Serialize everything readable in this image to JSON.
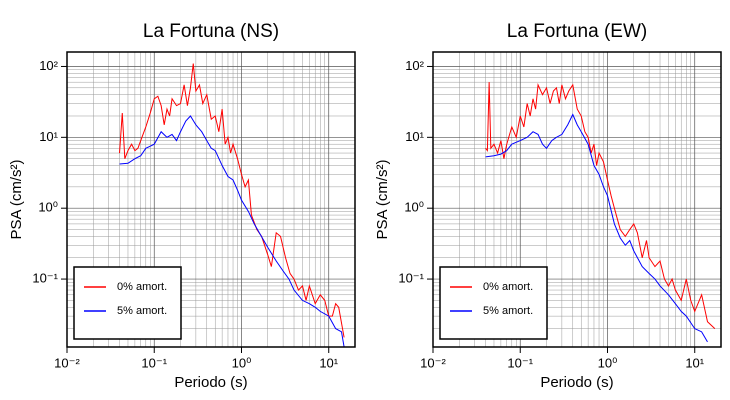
{
  "chart_data": [
    {
      "type": "line",
      "title": "La Fortuna (NS)",
      "xlabel": "Periodo (s)",
      "ylabel": "PSA (cm/s²)",
      "xscale": "log",
      "yscale": "log",
      "grid": true,
      "legend": "lower left",
      "xlim": [
        0.01,
        20
      ],
      "ylim": [
        0.011,
        160
      ],
      "xticks": [
        {
          "value": 0.01,
          "label": "10⁻²"
        },
        {
          "value": 0.1,
          "label": "10⁻¹"
        },
        {
          "value": 1,
          "label": "10⁰"
        },
        {
          "value": 10,
          "label": "10¹"
        }
      ],
      "yticks": [
        {
          "value": 0.1,
          "label": "10⁻¹"
        },
        {
          "value": 1,
          "label": "10⁰"
        },
        {
          "value": 10,
          "label": "10¹"
        },
        {
          "value": 100,
          "label": "10²"
        }
      ],
      "xminor": [
        0.02,
        0.03,
        0.04,
        0.05,
        0.06,
        0.07,
        0.08,
        0.09,
        0.2,
        0.3,
        0.4,
        0.5,
        0.6,
        0.7,
        0.8,
        0.9,
        2,
        3,
        4,
        5,
        6,
        7,
        8,
        9
      ],
      "yminor": [
        0.02,
        0.03,
        0.04,
        0.05,
        0.06,
        0.07,
        0.08,
        0.09,
        0.2,
        0.3,
        0.4,
        0.5,
        0.6,
        0.7,
        0.8,
        0.9,
        2,
        3,
        4,
        5,
        6,
        7,
        8,
        9,
        20,
        30,
        40,
        50,
        60,
        70,
        80,
        90
      ],
      "series": [
        {
          "name": "0% amort.",
          "color": "#ff0000",
          "x": [
            0.04,
            0.043,
            0.046,
            0.05,
            0.055,
            0.06,
            0.065,
            0.07,
            0.08,
            0.09,
            0.1,
            0.11,
            0.12,
            0.13,
            0.14,
            0.15,
            0.16,
            0.18,
            0.2,
            0.22,
            0.24,
            0.26,
            0.28,
            0.3,
            0.33,
            0.36,
            0.4,
            0.45,
            0.5,
            0.55,
            0.6,
            0.65,
            0.7,
            0.75,
            0.8,
            0.9,
            1.0,
            1.1,
            1.2,
            1.3,
            1.5,
            1.7,
            2.0,
            2.2,
            2.5,
            2.8,
            3.2,
            3.6,
            4.0,
            4.5,
            5,
            5.5,
            6,
            7,
            8,
            9,
            10,
            11,
            12,
            13,
            15
          ],
          "values": [
            6,
            22,
            5,
            6.5,
            8,
            6.5,
            7,
            9,
            14,
            22,
            35,
            38,
            28,
            15,
            25,
            20,
            35,
            28,
            30,
            55,
            28,
            50,
            110,
            45,
            55,
            30,
            40,
            18,
            20,
            12,
            25,
            8,
            10,
            6,
            8,
            5,
            3,
            2,
            2.5,
            0.8,
            0.5,
            0.4,
            0.22,
            0.15,
            0.45,
            0.4,
            0.2,
            0.12,
            0.1,
            0.07,
            0.08,
            0.05,
            0.08,
            0.045,
            0.06,
            0.05,
            0.03,
            0.03,
            0.045,
            0.04,
            0.015
          ]
        },
        {
          "name": "5% amort.",
          "color": "#0000ff",
          "x": [
            0.04,
            0.05,
            0.06,
            0.07,
            0.08,
            0.09,
            0.1,
            0.12,
            0.14,
            0.16,
            0.18,
            0.2,
            0.23,
            0.26,
            0.3,
            0.35,
            0.4,
            0.45,
            0.5,
            0.6,
            0.7,
            0.8,
            0.9,
            1.0,
            1.2,
            1.4,
            1.6,
            2.0,
            2.5,
            3,
            3.5,
            4,
            5,
            6,
            7,
            8,
            10,
            12,
            14,
            15
          ],
          "values": [
            4.2,
            4.3,
            5,
            5.5,
            7,
            7.5,
            8,
            12,
            10,
            11,
            9,
            12,
            17,
            20,
            15,
            12,
            9,
            7,
            6.5,
            4,
            2.8,
            2.5,
            1.8,
            1.3,
            0.9,
            0.6,
            0.45,
            0.28,
            0.18,
            0.13,
            0.1,
            0.07,
            0.05,
            0.045,
            0.04,
            0.035,
            0.03,
            0.02,
            0.018,
            0.011
          ]
        }
      ]
    },
    {
      "type": "line",
      "title": "La Fortuna (EW)",
      "xlabel": "Periodo (s)",
      "ylabel": "PSA (cm/s²)",
      "xscale": "log",
      "yscale": "log",
      "grid": true,
      "legend": "lower left",
      "xlim": [
        0.01,
        20
      ],
      "ylim": [
        0.011,
        160
      ],
      "xticks": [
        {
          "value": 0.01,
          "label": "10⁻²"
        },
        {
          "value": 0.1,
          "label": "10⁻¹"
        },
        {
          "value": 1,
          "label": "10⁰"
        },
        {
          "value": 10,
          "label": "10¹"
        }
      ],
      "yticks": [
        {
          "value": 0.1,
          "label": "10⁻¹"
        },
        {
          "value": 1,
          "label": "10⁰"
        },
        {
          "value": 10,
          "label": "10¹"
        },
        {
          "value": 100,
          "label": "10²"
        }
      ],
      "xminor": [
        0.02,
        0.03,
        0.04,
        0.05,
        0.06,
        0.07,
        0.08,
        0.09,
        0.2,
        0.3,
        0.4,
        0.5,
        0.6,
        0.7,
        0.8,
        0.9,
        2,
        3,
        4,
        5,
        6,
        7,
        8,
        9
      ],
      "yminor": [
        0.02,
        0.03,
        0.04,
        0.05,
        0.06,
        0.07,
        0.08,
        0.09,
        0.2,
        0.3,
        0.4,
        0.5,
        0.6,
        0.7,
        0.8,
        0.9,
        2,
        3,
        4,
        5,
        6,
        7,
        8,
        9,
        20,
        30,
        40,
        50,
        60,
        70,
        80,
        90
      ],
      "series": [
        {
          "name": "0% amort.",
          "color": "#ff0000",
          "x": [
            0.04,
            0.042,
            0.044,
            0.046,
            0.05,
            0.055,
            0.06,
            0.065,
            0.07,
            0.08,
            0.09,
            0.1,
            0.11,
            0.12,
            0.13,
            0.14,
            0.15,
            0.16,
            0.18,
            0.2,
            0.22,
            0.24,
            0.26,
            0.28,
            0.3,
            0.33,
            0.36,
            0.4,
            0.45,
            0.5,
            0.55,
            0.6,
            0.65,
            0.7,
            0.75,
            0.8,
            0.9,
            1.0,
            1.1,
            1.2,
            1.4,
            1.6,
            1.8,
            2.0,
            2.2,
            2.5,
            2.8,
            3,
            3.5,
            4,
            4.5,
            5,
            5.5,
            6,
            7,
            8,
            9,
            10,
            12,
            14,
            17
          ],
          "values": [
            7,
            6.5,
            60,
            7,
            8,
            6,
            9,
            5,
            8,
            14,
            10,
            20,
            14,
            30,
            20,
            35,
            25,
            55,
            40,
            50,
            30,
            45,
            50,
            30,
            55,
            35,
            45,
            55,
            25,
            20,
            12,
            10,
            6,
            8,
            4,
            6,
            4.5,
            2.5,
            1.5,
            1.0,
            0.5,
            0.4,
            0.5,
            0.6,
            0.45,
            0.2,
            0.35,
            0.2,
            0.15,
            0.18,
            0.1,
            0.08,
            0.1,
            0.07,
            0.05,
            0.1,
            0.05,
            0.035,
            0.06,
            0.025,
            0.02
          ]
        },
        {
          "name": "5% amort.",
          "color": "#0000ff",
          "x": [
            0.04,
            0.05,
            0.06,
            0.07,
            0.08,
            0.1,
            0.12,
            0.14,
            0.16,
            0.18,
            0.2,
            0.23,
            0.26,
            0.3,
            0.35,
            0.4,
            0.45,
            0.5,
            0.6,
            0.7,
            0.8,
            0.9,
            1.0,
            1.2,
            1.4,
            1.6,
            1.8,
            2.0,
            2.5,
            3,
            3.5,
            4,
            5,
            6,
            7,
            8,
            10,
            12,
            14
          ],
          "values": [
            5.3,
            5.5,
            5.8,
            6.5,
            8,
            9,
            10,
            12,
            11,
            8,
            7,
            9,
            10,
            11,
            15,
            21,
            15,
            12,
            8,
            4,
            3,
            2,
            1.5,
            0.6,
            0.38,
            0.3,
            0.35,
            0.25,
            0.15,
            0.12,
            0.1,
            0.08,
            0.06,
            0.045,
            0.035,
            0.03,
            0.02,
            0.018,
            0.013
          ]
        }
      ]
    }
  ]
}
